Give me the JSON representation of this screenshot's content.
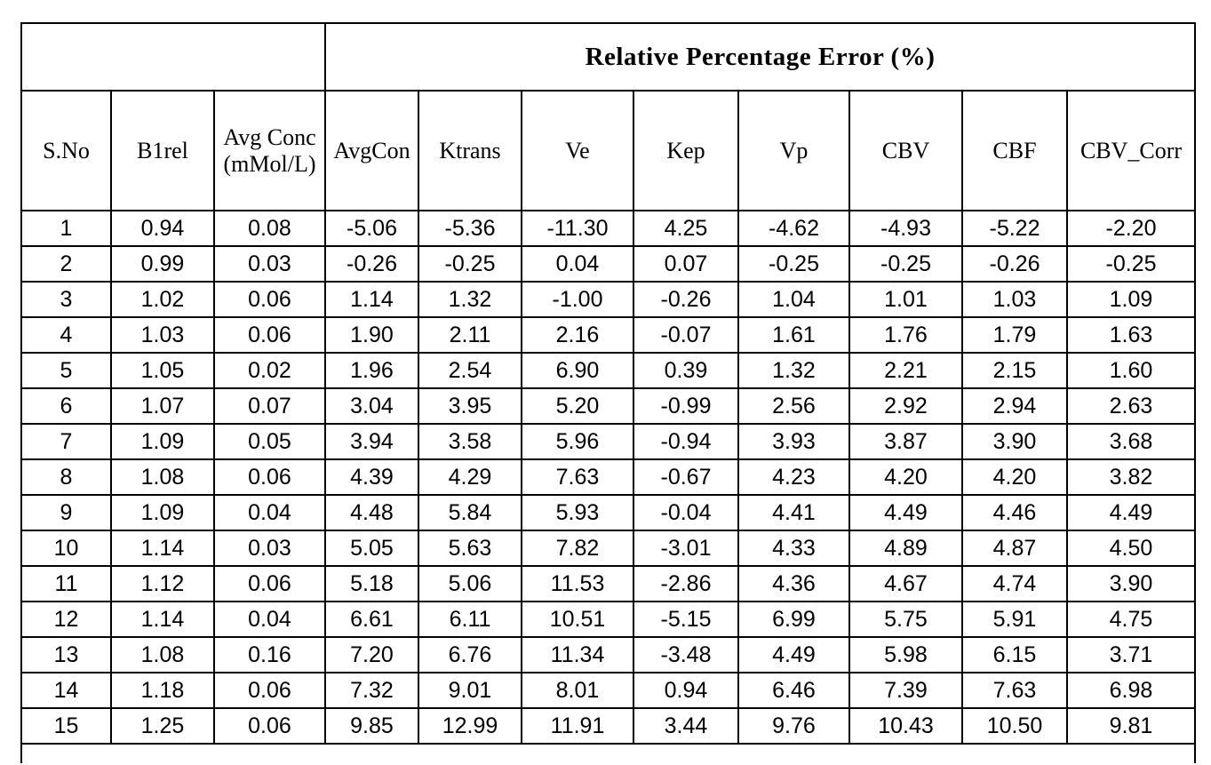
{
  "colors": {
    "border": "#000000",
    "background": "#ffffff",
    "text": "#000000"
  },
  "chart_data": {
    "type": "table",
    "title": "Relative Percentage Error (%)",
    "group_header": {
      "blank_label": "",
      "label": "Relative Percentage Error (%)",
      "spans_columns": [
        "AvgCon",
        "Ktrans",
        "Ve",
        "Kep",
        "Vp",
        "CBV",
        "CBF",
        "CBV_Corr"
      ]
    },
    "columns": [
      "S.No",
      "B1rel",
      "Avg Conc\n(mMol/L)",
      "AvgCon",
      "Ktrans",
      "Ve",
      "Kep",
      "Vp",
      "CBV",
      "CBF",
      "CBV_Corr"
    ],
    "rows": [
      [
        "1",
        "0.94",
        "0.08",
        "-5.06",
        "-5.36",
        "-11.30",
        "4.25",
        "-4.62",
        "-4.93",
        "-5.22",
        "-2.20"
      ],
      [
        "2",
        "0.99",
        "0.03",
        "-0.26",
        "-0.25",
        "0.04",
        "0.07",
        "-0.25",
        "-0.25",
        "-0.26",
        "-0.25"
      ],
      [
        "3",
        "1.02",
        "0.06",
        "1.14",
        "1.32",
        "-1.00",
        "-0.26",
        "1.04",
        "1.01",
        "1.03",
        "1.09"
      ],
      [
        "4",
        "1.03",
        "0.06",
        "1.90",
        "2.11",
        "2.16",
        "-0.07",
        "1.61",
        "1.76",
        "1.79",
        "1.63"
      ],
      [
        "5",
        "1.05",
        "0.02",
        "1.96",
        "2.54",
        "6.90",
        "0.39",
        "1.32",
        "2.21",
        "2.15",
        "1.60"
      ],
      [
        "6",
        "1.07",
        "0.07",
        "3.04",
        "3.95",
        "5.20",
        "-0.99",
        "2.56",
        "2.92",
        "2.94",
        "2.63"
      ],
      [
        "7",
        "1.09",
        "0.05",
        "3.94",
        "3.58",
        "5.96",
        "-0.94",
        "3.93",
        "3.87",
        "3.90",
        "3.68"
      ],
      [
        "8",
        "1.08",
        "0.06",
        "4.39",
        "4.29",
        "7.63",
        "-0.67",
        "4.23",
        "4.20",
        "4.20",
        "3.82"
      ],
      [
        "9",
        "1.09",
        "0.04",
        "4.48",
        "5.84",
        "5.93",
        "-0.04",
        "4.41",
        "4.49",
        "4.46",
        "4.49"
      ],
      [
        "10",
        "1.14",
        "0.03",
        "5.05",
        "5.63",
        "7.82",
        "-3.01",
        "4.33",
        "4.89",
        "4.87",
        "4.50"
      ],
      [
        "11",
        "1.12",
        "0.06",
        "5.18",
        "5.06",
        "11.53",
        "-2.86",
        "4.36",
        "4.67",
        "4.74",
        "3.90"
      ],
      [
        "12",
        "1.14",
        "0.04",
        "6.61",
        "6.11",
        "10.51",
        "-5.15",
        "6.99",
        "5.75",
        "5.91",
        "4.75"
      ],
      [
        "13",
        "1.08",
        "0.16",
        "7.20",
        "6.76",
        "11.34",
        "-3.48",
        "4.49",
        "5.98",
        "6.15",
        "3.71"
      ],
      [
        "14",
        "1.18",
        "0.06",
        "7.32",
        "9.01",
        "8.01",
        "0.94",
        "6.46",
        "7.39",
        "7.63",
        "6.98"
      ],
      [
        "15",
        "1.25",
        "0.06",
        "9.85",
        "12.99",
        "11.91",
        "3.44",
        "9.76",
        "10.43",
        "10.50",
        "9.81"
      ]
    ]
  }
}
